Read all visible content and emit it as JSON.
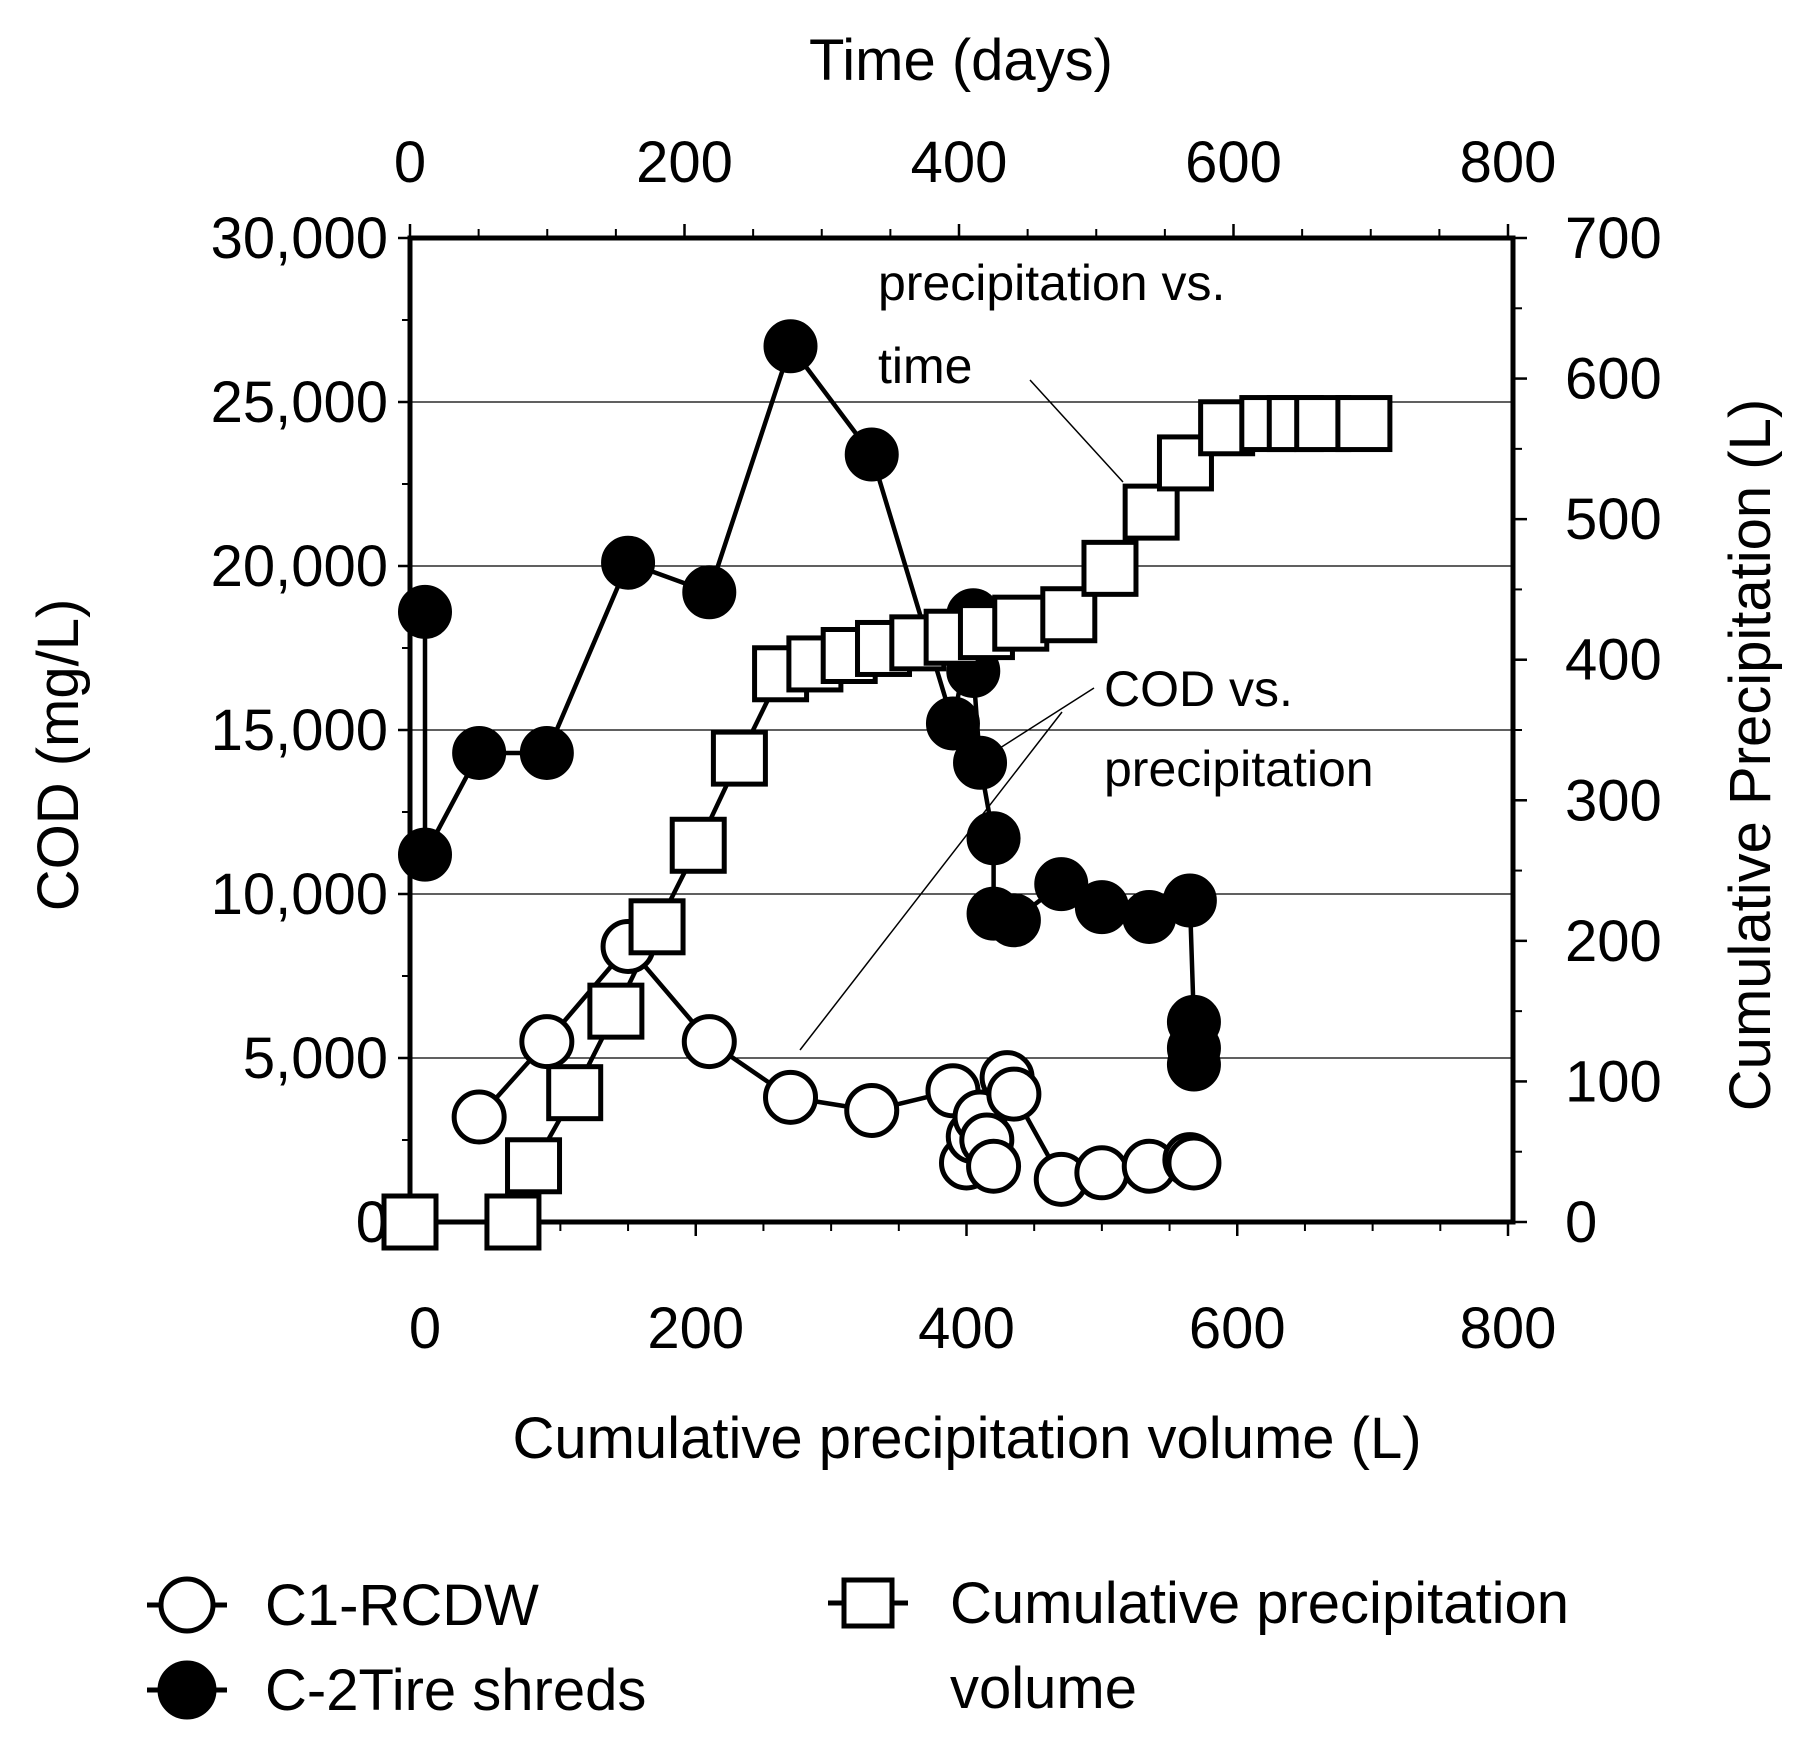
{
  "chart_data": {
    "type": "scatter",
    "axes": {
      "x_bottom": {
        "label": "Cumulative precipitation volume (L)",
        "range": [
          0,
          800
        ],
        "ticks": [
          0,
          200,
          400,
          600,
          800
        ],
        "tick_labels": [
          "0",
          "200",
          "400",
          "600",
          "800"
        ]
      },
      "x_top": {
        "label": "Time (days)",
        "range": [
          0,
          800
        ],
        "ticks": [
          0,
          200,
          400,
          600,
          800
        ],
        "tick_labels": [
          "0",
          "200",
          "400",
          "600",
          "800"
        ]
      },
      "y_left": {
        "label": "COD (mg/L)",
        "range": [
          0,
          30000
        ],
        "ticks": [
          0,
          5000,
          10000,
          15000,
          20000,
          25000,
          30000
        ],
        "tick_labels": [
          "0",
          "5,000",
          "10,000",
          "15,000",
          "20,000",
          "25,000",
          "30,000"
        ]
      },
      "y_right": {
        "label": "Cumulative Precipitation (L)",
        "range": [
          0,
          700
        ],
        "ticks": [
          0,
          100,
          200,
          300,
          400,
          500,
          600,
          700
        ],
        "tick_labels": [
          "0",
          "100",
          "200",
          "300",
          "400",
          "500",
          "600",
          "700"
        ]
      }
    },
    "grid": true,
    "series": [
      {
        "name": "C1-RCDW",
        "marker": "open-circle",
        "x_axis": "bottom",
        "y_axis": "left",
        "points": [
          {
            "x": 40,
            "y": 3200
          },
          {
            "x": 90,
            "y": 5500
          },
          {
            "x": 150,
            "y": 8400
          },
          {
            "x": 210,
            "y": 5500
          },
          {
            "x": 270,
            "y": 3800
          },
          {
            "x": 330,
            "y": 3400
          },
          {
            "x": 390,
            "y": 4000
          },
          {
            "x": 400,
            "y": 1800
          },
          {
            "x": 405,
            "y": 2600
          },
          {
            "x": 410,
            "y": 3200
          },
          {
            "x": 415,
            "y": 2500
          },
          {
            "x": 420,
            "y": 1700
          },
          {
            "x": 430,
            "y": 4400
          },
          {
            "x": 435,
            "y": 3900
          },
          {
            "x": 470,
            "y": 1300
          },
          {
            "x": 500,
            "y": 1500
          },
          {
            "x": 535,
            "y": 1700
          },
          {
            "x": 565,
            "y": 1900
          },
          {
            "x": 568,
            "y": 1800
          }
        ]
      },
      {
        "name": "C-2Tire shreds",
        "marker": "filled-circle",
        "x_axis": "bottom",
        "y_axis": "left",
        "points": [
          {
            "x": 0,
            "y": 18600
          },
          {
            "x": 0,
            "y": 11200
          },
          {
            "x": 40,
            "y": 14300
          },
          {
            "x": 90,
            "y": 14300
          },
          {
            "x": 150,
            "y": 20100
          },
          {
            "x": 210,
            "y": 19200
          },
          {
            "x": 270,
            "y": 26700
          },
          {
            "x": 330,
            "y": 23400
          },
          {
            "x": 390,
            "y": 15200
          },
          {
            "x": 405,
            "y": 18500
          },
          {
            "x": 405,
            "y": 16800
          },
          {
            "x": 410,
            "y": 14000
          },
          {
            "x": 420,
            "y": 11700
          },
          {
            "x": 420,
            "y": 9400
          },
          {
            "x": 435,
            "y": 9200
          },
          {
            "x": 470,
            "y": 10300
          },
          {
            "x": 500,
            "y": 9600
          },
          {
            "x": 535,
            "y": 9300
          },
          {
            "x": 565,
            "y": 9800
          },
          {
            "x": 568,
            "y": 6100
          },
          {
            "x": 568,
            "y": 5300
          },
          {
            "x": 568,
            "y": 4800
          }
        ]
      },
      {
        "name": "Cumulative precipitation volume",
        "marker": "open-square",
        "x_axis": "top",
        "y_axis": "right",
        "points": [
          {
            "x": 0,
            "y": 0
          },
          {
            "x": 75,
            "y": 0
          },
          {
            "x": 90,
            "y": 40
          },
          {
            "x": 120,
            "y": 92
          },
          {
            "x": 150,
            "y": 150
          },
          {
            "x": 180,
            "y": 210
          },
          {
            "x": 210,
            "y": 268
          },
          {
            "x": 240,
            "y": 330
          },
          {
            "x": 270,
            "y": 390
          },
          {
            "x": 295,
            "y": 397
          },
          {
            "x": 320,
            "y": 403
          },
          {
            "x": 345,
            "y": 408
          },
          {
            "x": 370,
            "y": 412
          },
          {
            "x": 395,
            "y": 416
          },
          {
            "x": 420,
            "y": 420
          },
          {
            "x": 445,
            "y": 426
          },
          {
            "x": 480,
            "y": 432
          },
          {
            "x": 510,
            "y": 465
          },
          {
            "x": 540,
            "y": 505
          },
          {
            "x": 565,
            "y": 540
          },
          {
            "x": 595,
            "y": 565
          },
          {
            "x": 625,
            "y": 568
          },
          {
            "x": 645,
            "y": 568
          },
          {
            "x": 665,
            "y": 568
          },
          {
            "x": 695,
            "y": 568
          }
        ]
      }
    ],
    "annotations": [
      {
        "id": "precip-vs-time",
        "lines": [
          "precipitation vs.",
          "time"
        ]
      },
      {
        "id": "cod-vs-precip",
        "lines": [
          "COD vs.",
          "precipitation"
        ]
      }
    ],
    "legend": {
      "placement": "bottom",
      "items": [
        {
          "marker": "open-circle",
          "label": "C1-RCDW"
        },
        {
          "marker": "filled-circle",
          "label": "C-2Tire shreds"
        },
        {
          "marker": "open-square",
          "label_lines": [
            "Cumulative precipitation",
            "volume"
          ]
        }
      ]
    }
  }
}
